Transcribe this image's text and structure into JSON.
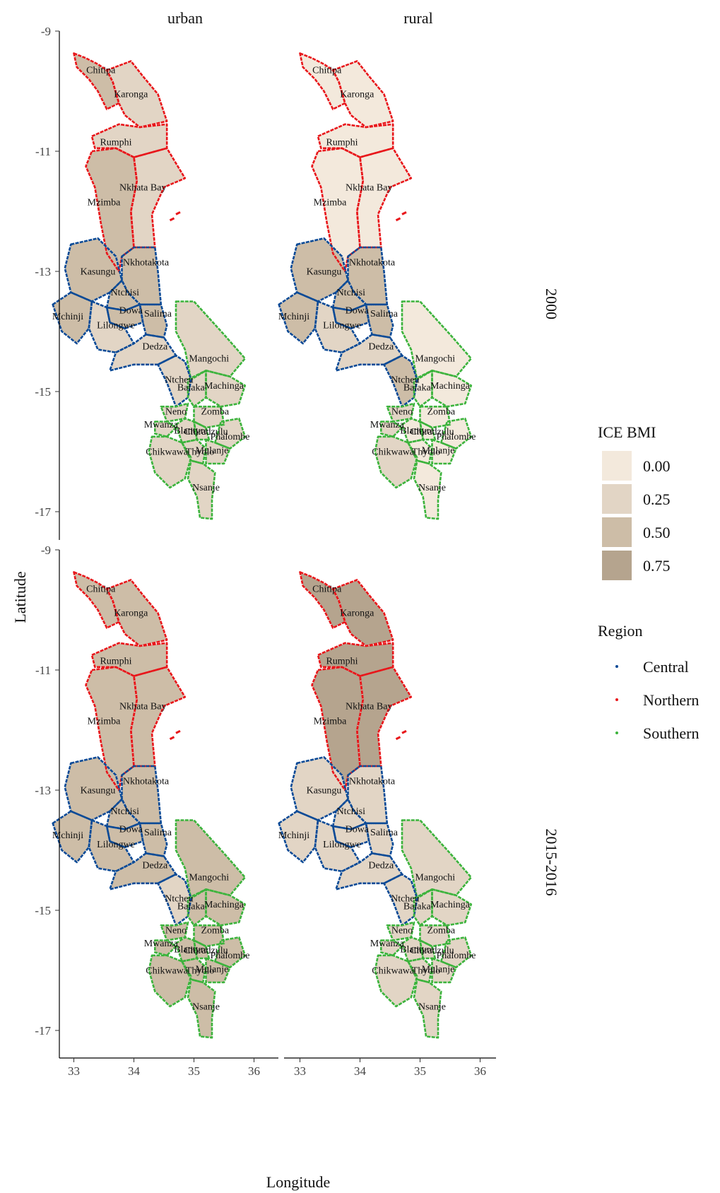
{
  "facets": {
    "columns": [
      "urban",
      "rural"
    ],
    "rows": [
      "2000",
      "2015-2016"
    ]
  },
  "axes": {
    "xlabel": "Longitude",
    "ylabel": "Latitude",
    "xticks": [
      33,
      34,
      35,
      36
    ],
    "yticks": [
      -9,
      -11,
      -13,
      -15,
      -17
    ],
    "xlim": [
      32.5,
      36.1
    ],
    "ylim": [
      -17.15,
      -9.3
    ]
  },
  "legend_fill": {
    "title": "ICE BMI",
    "entries": [
      {
        "label": "0.00",
        "color": "#F3E9DC"
      },
      {
        "label": "0.25",
        "color": "#E2D5C5"
      },
      {
        "label": "0.50",
        "color": "#CDBDA7"
      },
      {
        "label": "0.75",
        "color": "#B5A48E"
      }
    ]
  },
  "legend_region": {
    "title": "Region",
    "entries": [
      {
        "label": "Central",
        "color": "#0B4A96"
      },
      {
        "label": "Northern",
        "color": "#E8171B"
      },
      {
        "label": "Southern",
        "color": "#3CB33C"
      }
    ]
  },
  "map_data": {
    "districts": [
      {
        "name": "Chitipa",
        "region": "Northern",
        "lon": 33.45,
        "lat": -9.7
      },
      {
        "name": "Karonga",
        "region": "Northern",
        "lon": 33.95,
        "lat": -10.1
      },
      {
        "name": "Rumphi",
        "region": "Northern",
        "lon": 33.7,
        "lat": -10.9
      },
      {
        "name": "Nkhata Bay",
        "region": "Northern",
        "lon": 34.15,
        "lat": -11.65
      },
      {
        "name": "Mzimba",
        "region": "Northern",
        "lon": 33.5,
        "lat": -11.9
      },
      {
        "name": "Kasungu",
        "region": "Central",
        "lon": 33.4,
        "lat": -13.05
      },
      {
        "name": "Nkhotakota",
        "region": "Central",
        "lon": 34.2,
        "lat": -12.9
      },
      {
        "name": "Ntchisi",
        "region": "Central",
        "lon": 33.85,
        "lat": -13.4
      },
      {
        "name": "Dowa",
        "region": "Central",
        "lon": 33.95,
        "lat": -13.7
      },
      {
        "name": "Mchinji",
        "region": "Central",
        "lon": 32.9,
        "lat": -13.8
      },
      {
        "name": "Salima",
        "region": "Central",
        "lon": 34.4,
        "lat": -13.75
      },
      {
        "name": "Lilongwe",
        "region": "Central",
        "lon": 33.7,
        "lat": -13.95
      },
      {
        "name": "Dedza",
        "region": "Central",
        "lon": 34.35,
        "lat": -14.3
      },
      {
        "name": "Mangochi",
        "region": "Southern",
        "lon": 35.25,
        "lat": -14.5
      },
      {
        "name": "Ntcheu",
        "region": "Central",
        "lon": 34.75,
        "lat": -14.85
      },
      {
        "name": "Balaka",
        "region": "Southern",
        "lon": 34.95,
        "lat": -14.98
      },
      {
        "name": "Machinga",
        "region": "Southern",
        "lon": 35.5,
        "lat": -14.95
      },
      {
        "name": "Neno",
        "region": "Southern",
        "lon": 34.7,
        "lat": -15.38
      },
      {
        "name": "Zomba",
        "region": "Southern",
        "lon": 35.35,
        "lat": -15.38
      },
      {
        "name": "Mwanza",
        "region": "Southern",
        "lon": 34.45,
        "lat": -15.6
      },
      {
        "name": "Blantyre",
        "region": "Southern",
        "lon": 34.95,
        "lat": -15.7
      },
      {
        "name": "Chiradzulu",
        "region": "Southern",
        "lon": 35.2,
        "lat": -15.72
      },
      {
        "name": "Phalombe",
        "region": "Southern",
        "lon": 35.6,
        "lat": -15.8
      },
      {
        "name": "Chikwawa",
        "region": "Southern",
        "lon": 34.55,
        "lat": -16.05
      },
      {
        "name": "Thyolo",
        "region": "Southern",
        "lon": 35.1,
        "lat": -16.05
      },
      {
        "name": "Mulanje",
        "region": "Southern",
        "lon": 35.3,
        "lat": -16.03
      },
      {
        "name": "Nsanje",
        "region": "Southern",
        "lon": 35.2,
        "lat": -16.65
      }
    ],
    "fill_level": {
      "urban_2000": {
        "Chitipa": 0.5,
        "Karonga": 0.25,
        "Rumphi": 0.25,
        "Nkhata Bay": 0.25,
        "Mzimba": 0.5,
        "Kasungu": 0.5,
        "Nkhotakota": 0.5,
        "Ntchisi": 0.5,
        "Dowa": 0.5,
        "Mchinji": 0.5,
        "Salima": 0.5,
        "Lilongwe": 0.25,
        "Dedza": 0.25,
        "Mangochi": 0.25,
        "Ntcheu": 0.25,
        "Balaka": 0.25,
        "Machinga": 0.25,
        "Neno": 0.25,
        "Zomba": 0.25,
        "Mwanza": 0.25,
        "Blantyre": 0.25,
        "Chiradzulu": 0.25,
        "Phalombe": 0.25,
        "Chikwawa": 0.25,
        "Thyolo": 0.25,
        "Mulanje": 0.25,
        "Nsanje": 0.25
      },
      "rural_2000": {
        "Chitipa": 0.0,
        "Karonga": 0.0,
        "Rumphi": 0.0,
        "Nkhata Bay": 0.0,
        "Mzimba": 0.0,
        "Kasungu": 0.5,
        "Nkhotakota": 0.5,
        "Ntchisi": 0.5,
        "Dowa": 0.5,
        "Mchinji": 0.5,
        "Salima": 0.5,
        "Lilongwe": 0.25,
        "Dedza": 0.25,
        "Mangochi": 0.0,
        "Ntcheu": 0.5,
        "Balaka": 0.0,
        "Machinga": 0.0,
        "Neno": 0.25,
        "Zomba": 0.0,
        "Mwanza": 0.25,
        "Blantyre": 0.0,
        "Chiradzulu": 0.0,
        "Phalombe": 0.0,
        "Chikwawa": 0.25,
        "Thyolo": 0.0,
        "Mulanje": 0.0,
        "Nsanje": 0.0
      },
      "urban_2015-2016": {
        "Chitipa": 0.5,
        "Karonga": 0.5,
        "Rumphi": 0.5,
        "Nkhata Bay": 0.5,
        "Mzimba": 0.5,
        "Kasungu": 0.5,
        "Nkhotakota": 0.5,
        "Ntchisi": 0.5,
        "Dowa": 0.5,
        "Mchinji": 0.5,
        "Salima": 0.5,
        "Lilongwe": 0.5,
        "Dedza": 0.5,
        "Mangochi": 0.5,
        "Ntcheu": 0.25,
        "Balaka": 0.5,
        "Machinga": 0.5,
        "Neno": 0.5,
        "Zomba": 0.5,
        "Mwanza": 0.5,
        "Blantyre": 0.5,
        "Chiradzulu": 0.5,
        "Phalombe": 0.5,
        "Chikwawa": 0.5,
        "Thyolo": 0.5,
        "Mulanje": 0.5,
        "Nsanje": 0.5
      },
      "rural_2015-2016": {
        "Chitipa": 0.75,
        "Karonga": 0.75,
        "Rumphi": 0.75,
        "Nkhata Bay": 0.75,
        "Mzimba": 0.75,
        "Kasungu": 0.25,
        "Nkhotakota": 0.25,
        "Ntchisi": 0.25,
        "Dowa": 0.25,
        "Mchinji": 0.25,
        "Salima": 0.25,
        "Lilongwe": 0.25,
        "Dedza": 0.25,
        "Mangochi": 0.25,
        "Ntcheu": 0.25,
        "Balaka": 0.25,
        "Machinga": 0.25,
        "Neno": 0.25,
        "Zomba": 0.25,
        "Mwanza": 0.25,
        "Blantyre": 0.25,
        "Chiradzulu": 0.25,
        "Phalombe": 0.25,
        "Chikwawa": 0.25,
        "Thyolo": 0.25,
        "Mulanje": 0.25,
        "Nsanje": 0.25
      }
    }
  }
}
